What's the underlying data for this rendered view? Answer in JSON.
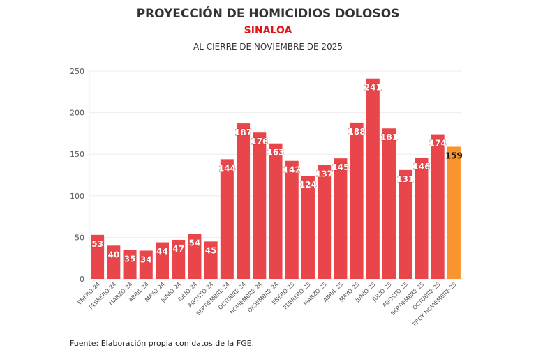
{
  "chart_data": {
    "type": "bar",
    "title": "PROYECCIÓN DE HOMICIDIOS DOLOSOS",
    "subtitle": "SINALOA",
    "subtitle2": "AL CIERRE DE NOVIEMBRE DE 2025",
    "categories": [
      "ENERO-24",
      "FEBRERO-24",
      "MARZO-24",
      "ABRIL-24",
      "MAYO-24",
      "JUNIO-24",
      "JULIO-24",
      "AGOSTO-24",
      "SEPTIEMBRE-24",
      "OCTUBRE-24",
      "NOVIEMBRE-24",
      "DICIEMBRE-24",
      "ENERO-25",
      "FEBRERO-25",
      "MARZO-25",
      "ABRIL-25",
      "MAYO-25",
      "JUNIO-25",
      "JULIO-25",
      "AGOSTO-25",
      "SEPTIEMBRE-25",
      "OCTUBRE-25",
      "PROY NOVIEMBRE-25"
    ],
    "values": [
      53,
      40,
      35,
      34,
      44,
      47,
      54,
      45,
      144,
      187,
      176,
      163,
      142,
      124,
      137,
      145,
      188,
      241,
      181,
      131,
      146,
      174,
      159
    ],
    "ylim": [
      0,
      250
    ],
    "yticks": [
      0,
      50,
      100,
      150,
      200,
      250
    ],
    "grid": true,
    "xlabel": "",
    "ylabel": "",
    "colors": {
      "actual": "#e8464a",
      "projection": "#f9952e"
    }
  },
  "source": "Fuente: Elaboración propia con datos de la FGE."
}
